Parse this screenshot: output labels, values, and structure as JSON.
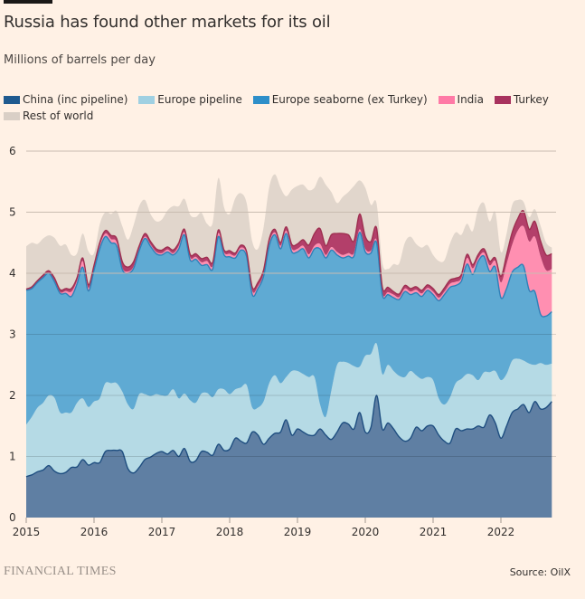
{
  "header": {
    "title": "Russia has found other markets for its oil",
    "subtitle": "Millions of barrels per day"
  },
  "footer": {
    "logo": "FINANCIAL TIMES",
    "source": "Source: OilX"
  },
  "chart_data": {
    "type": "area",
    "stacked": true,
    "title": "Russia has found other markets for its oil",
    "ylabel": "Millions of barrels per day",
    "xlabel": "",
    "ylim": [
      0,
      6
    ],
    "yticks": [
      0,
      1,
      2,
      3,
      4,
      5,
      6
    ],
    "xlim": [
      2015.0,
      2022.83
    ],
    "xticks": [
      2015,
      2016,
      2017,
      2018,
      2019,
      2020,
      2021,
      2022
    ],
    "grid": true,
    "legend_position": "top-left",
    "x_start": "2015-01",
    "x_step": "month",
    "series": [
      {
        "name": "China (inc pipeline)",
        "color": "#5f7fa3",
        "line": "#1f4e80",
        "values": [
          0.67,
          0.7,
          0.75,
          0.78,
          0.85,
          0.76,
          0.72,
          0.74,
          0.82,
          0.83,
          0.95,
          0.86,
          0.9,
          0.9,
          1.08,
          1.1,
          1.1,
          1.08,
          0.8,
          0.73,
          0.82,
          0.95,
          0.99,
          1.05,
          1.08,
          1.04,
          1.1,
          1.0,
          1.13,
          0.92,
          0.93,
          1.08,
          1.07,
          1.02,
          1.2,
          1.1,
          1.12,
          1.3,
          1.25,
          1.22,
          1.4,
          1.35,
          1.2,
          1.3,
          1.38,
          1.4,
          1.6,
          1.35,
          1.45,
          1.4,
          1.35,
          1.35,
          1.45,
          1.35,
          1.28,
          1.4,
          1.55,
          1.53,
          1.45,
          1.72,
          1.4,
          1.48,
          2.0,
          1.45,
          1.55,
          1.45,
          1.32,
          1.25,
          1.3,
          1.48,
          1.42,
          1.5,
          1.5,
          1.35,
          1.25,
          1.22,
          1.45,
          1.42,
          1.45,
          1.45,
          1.5,
          1.48,
          1.68,
          1.55,
          1.3,
          1.5,
          1.72,
          1.78,
          1.85,
          1.72,
          1.9,
          1.78,
          1.8,
          1.9
        ]
      },
      {
        "name": "Europe pipeline",
        "color": "#b5dae5",
        "values": [
          0.85,
          0.95,
          1.05,
          1.1,
          1.15,
          1.2,
          1.0,
          0.98,
          0.9,
          1.05,
          1.0,
          0.95,
          1.0,
          1.05,
          1.12,
          1.1,
          1.1,
          0.98,
          1.05,
          1.05,
          1.2,
          1.07,
          1.0,
          0.97,
          0.92,
          0.96,
          1.0,
          0.95,
          0.9,
          1.0,
          0.95,
          0.95,
          0.97,
          0.95,
          0.9,
          1.0,
          0.9,
          0.8,
          0.88,
          0.95,
          0.4,
          0.45,
          0.7,
          0.9,
          0.95,
          0.8,
          0.7,
          1.05,
          0.95,
          0.95,
          0.95,
          0.95,
          0.4,
          0.3,
          0.8,
          1.1,
          1.0,
          1.0,
          1.03,
          0.75,
          1.25,
          1.2,
          0.85,
          0.9,
          0.95,
          0.95,
          1.0,
          1.05,
          1.1,
          0.85,
          0.85,
          0.8,
          0.75,
          0.6,
          0.6,
          0.75,
          0.75,
          0.85,
          0.9,
          0.88,
          0.75,
          0.9,
          0.7,
          0.85,
          0.95,
          0.85,
          0.85,
          0.82,
          0.72,
          0.8,
          0.6,
          0.75,
          0.7,
          0.62
        ]
      },
      {
        "name": "Europe seaborne (ex Turkey)",
        "color": "#5faad3",
        "line": "#2f81b8",
        "values": [
          2.2,
          2.1,
          2.05,
          2.05,
          2.0,
          1.9,
          1.95,
          1.95,
          1.9,
          1.95,
          2.15,
          1.9,
          2.15,
          2.45,
          2.4,
          2.3,
          2.25,
          2.0,
          2.15,
          2.3,
          2.35,
          2.55,
          2.45,
          2.3,
          2.3,
          2.35,
          2.2,
          2.45,
          2.6,
          2.3,
          2.35,
          2.1,
          2.1,
          2.1,
          2.5,
          2.2,
          2.25,
          2.15,
          2.25,
          2.1,
          1.85,
          1.95,
          2.05,
          2.25,
          2.3,
          2.2,
          2.35,
          1.95,
          1.95,
          2.05,
          1.95,
          2.1,
          2.55,
          2.6,
          2.3,
          1.8,
          1.7,
          1.75,
          1.8,
          2.2,
          1.7,
          1.65,
          1.65,
          1.3,
          1.15,
          1.2,
          1.25,
          1.4,
          1.25,
          1.35,
          1.35,
          1.42,
          1.4,
          1.6,
          1.8,
          1.8,
          1.6,
          1.6,
          1.8,
          1.65,
          1.95,
          1.9,
          1.65,
          1.7,
          1.35,
          1.4,
          1.45,
          1.5,
          1.55,
          1.2,
          1.2,
          0.8,
          0.8,
          0.85
        ]
      },
      {
        "name": "India",
        "color": "#ff8fb1",
        "values": [
          0.0,
          0.0,
          0.0,
          0.0,
          0.0,
          0.02,
          0.02,
          0.04,
          0.08,
          0.05,
          0.1,
          0.05,
          0.03,
          0.05,
          0.05,
          0.06,
          0.06,
          0.03,
          0.03,
          0.03,
          0.03,
          0.03,
          0.03,
          0.03,
          0.03,
          0.04,
          0.03,
          0.05,
          0.04,
          0.04,
          0.04,
          0.05,
          0.06,
          0.05,
          0.06,
          0.04,
          0.05,
          0.04,
          0.04,
          0.04,
          0.06,
          0.04,
          0.04,
          0.05,
          0.04,
          0.05,
          0.05,
          0.05,
          0.05,
          0.05,
          0.06,
          0.05,
          0.08,
          0.05,
          0.05,
          0.05,
          0.05,
          0.05,
          0.05,
          0.05,
          0.05,
          0.04,
          0.04,
          0.03,
          0.04,
          0.05,
          0.04,
          0.05,
          0.05,
          0.05,
          0.05,
          0.04,
          0.05,
          0.05,
          0.05,
          0.06,
          0.06,
          0.05,
          0.1,
          0.1,
          0.05,
          0.06,
          0.1,
          0.1,
          0.25,
          0.4,
          0.45,
          0.6,
          0.65,
          0.8,
          0.9,
          0.95,
          0.75,
          0.7
        ]
      },
      {
        "name": "Turkey",
        "color": "#b33f6a",
        "line": "#9e2f50",
        "values": [
          0.02,
          0.03,
          0.03,
          0.04,
          0.04,
          0.04,
          0.04,
          0.04,
          0.05,
          0.05,
          0.05,
          0.05,
          0.05,
          0.05,
          0.05,
          0.06,
          0.06,
          0.1,
          0.07,
          0.08,
          0.05,
          0.05,
          0.05,
          0.05,
          0.05,
          0.04,
          0.05,
          0.05,
          0.05,
          0.05,
          0.05,
          0.06,
          0.06,
          0.06,
          0.05,
          0.04,
          0.05,
          0.04,
          0.04,
          0.04,
          0.06,
          0.06,
          0.06,
          0.06,
          0.05,
          0.05,
          0.06,
          0.07,
          0.08,
          0.1,
          0.15,
          0.2,
          0.25,
          0.15,
          0.2,
          0.3,
          0.35,
          0.3,
          0.2,
          0.25,
          0.2,
          0.15,
          0.2,
          0.1,
          0.08,
          0.05,
          0.05,
          0.05,
          0.05,
          0.05,
          0.05,
          0.05,
          0.05,
          0.05,
          0.06,
          0.06,
          0.06,
          0.06,
          0.06,
          0.06,
          0.06,
          0.06,
          0.07,
          0.05,
          0.1,
          0.15,
          0.2,
          0.2,
          0.25,
          0.2,
          0.25,
          0.25,
          0.25,
          0.25
        ]
      },
      {
        "name": "Rest of world",
        "color": "#e1d6cc",
        "values": [
          0.7,
          0.72,
          0.6,
          0.6,
          0.58,
          0.66,
          0.72,
          0.72,
          0.55,
          0.4,
          0.4,
          0.55,
          0.2,
          0.3,
          0.3,
          0.35,
          0.45,
          0.58,
          0.45,
          0.6,
          0.65,
          0.55,
          0.45,
          0.45,
          0.5,
          0.6,
          0.72,
          0.6,
          0.5,
          0.65,
          0.6,
          0.75,
          0.55,
          0.65,
          0.85,
          0.7,
          0.6,
          0.9,
          0.85,
          0.8,
          0.75,
          0.55,
          0.7,
          0.85,
          0.9,
          0.9,
          0.5,
          0.9,
          0.95,
          0.9,
          0.9,
          0.75,
          0.85,
          1.0,
          0.7,
          0.5,
          0.6,
          0.7,
          0.9,
          0.55,
          0.8,
          0.6,
          0.4,
          0.4,
          0.3,
          0.45,
          0.5,
          0.7,
          0.85,
          0.7,
          0.7,
          0.65,
          0.55,
          0.55,
          0.45,
          0.6,
          0.75,
          0.65,
          0.5,
          0.55,
          0.75,
          0.75,
          0.65,
          0.75,
          0.4,
          0.35,
          0.45,
          0.3,
          0.15,
          0.2,
          0.2,
          0.25,
          0.2,
          0.1
        ]
      }
    ]
  }
}
